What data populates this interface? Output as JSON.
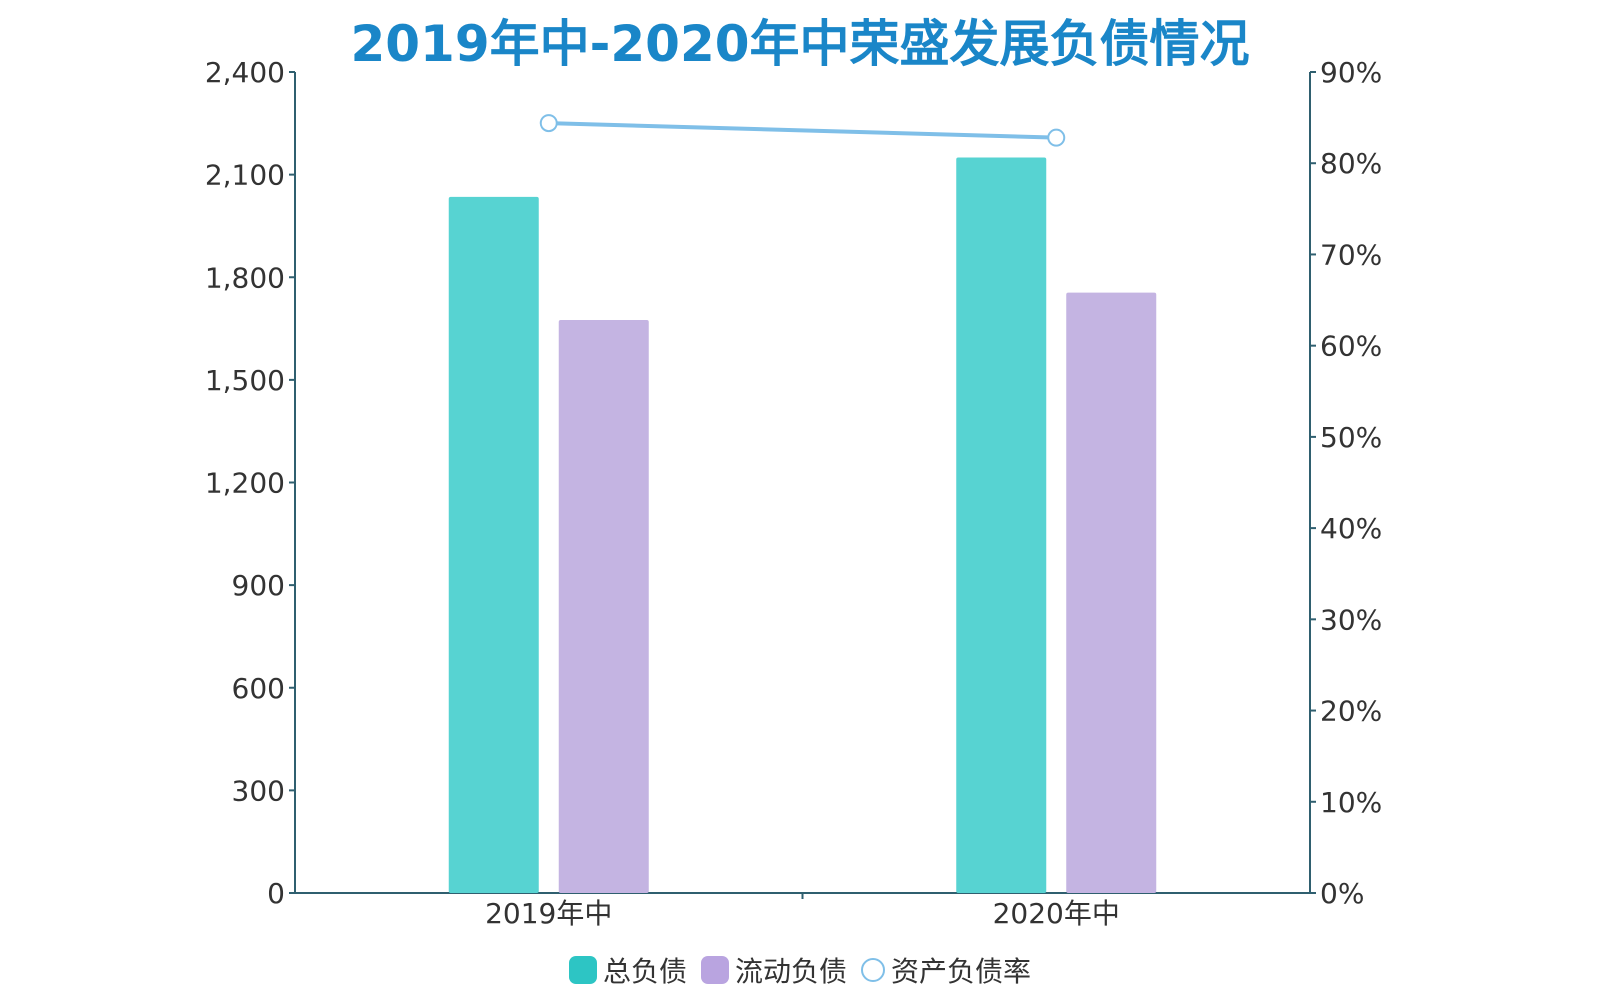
{
  "chart_data": {
    "type": "bar",
    "title": "2019年中-2020年中荣盛发展负债情况",
    "categories": [
      "2019年中",
      "2020年中"
    ],
    "series": [
      {
        "name": "总负债",
        "type": "bar",
        "axis": "left",
        "color": "#57d3d2",
        "values": [
          2035,
          2150
        ]
      },
      {
        "name": "流动负债",
        "type": "bar",
        "axis": "left",
        "color": "#c4b4e2",
        "values": [
          1675,
          1755
        ]
      },
      {
        "name": "资产负债率",
        "type": "line",
        "axis": "right",
        "color": "#7fbfe8",
        "values": [
          84.4,
          82.8
        ]
      }
    ],
    "y_left": {
      "min": 0,
      "max": 2400,
      "ticks": [
        "0",
        "300",
        "600",
        "900",
        "1,200",
        "1,500",
        "1,800",
        "2,100",
        "2,400"
      ]
    },
    "y_right": {
      "min": 0,
      "max": 90,
      "ticks": [
        "0%",
        "10%",
        "20%",
        "30%",
        "40%",
        "50%",
        "60%",
        "70%",
        "80%",
        "90%"
      ]
    },
    "legend_position": "bottom",
    "grid": false
  },
  "colors": {
    "title": "#1a86c8",
    "axis": "#2f5f6f",
    "legend_total_swatch": "#2dc5c4",
    "legend_current_swatch": "#b9a4e0"
  }
}
